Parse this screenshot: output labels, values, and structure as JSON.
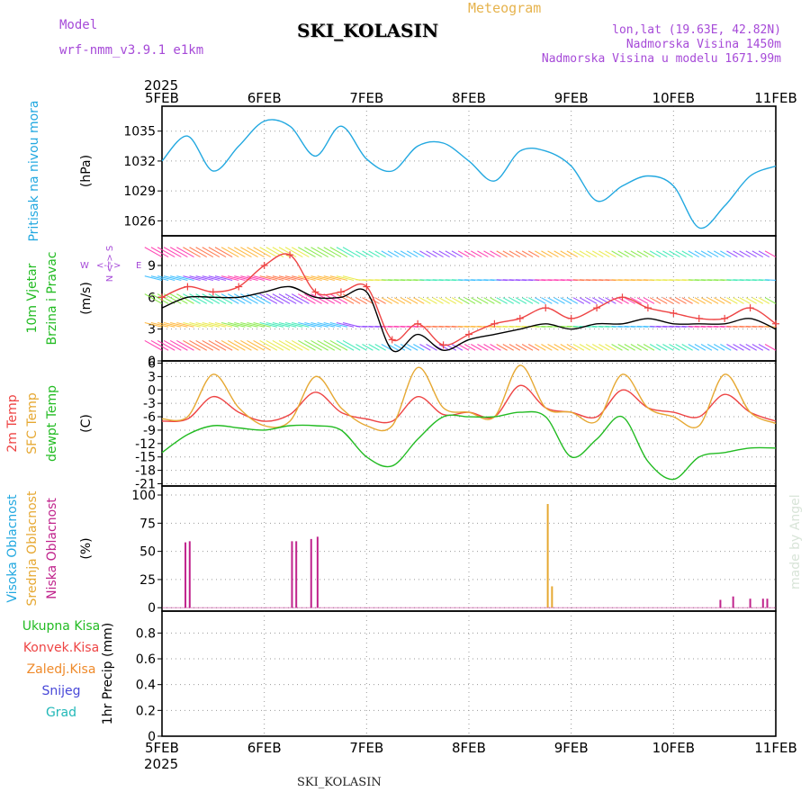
{
  "header": {
    "model_label": "Model",
    "model_name": "wrf-nmm_v3.9.1 e1km",
    "chart_kind": "Meteogram",
    "station": "SKI_KOLASIN",
    "coords": "lon,lat (19.63E, 42.82N)",
    "elevation": "Nadmorska Visina 1450m",
    "model_elevation": "Nadmorska Visina u modelu 1671.99m",
    "year_top": "2025",
    "year_bottom": "2025",
    "footer_station": "SKI_KOLASIN",
    "credit": "made by Angel"
  },
  "chart_data": {
    "type": "line",
    "x_ticks": [
      "5FEB",
      "6FEB",
      "7FEB",
      "8FEB",
      "9FEB",
      "10FEB",
      "11FEB"
    ],
    "hours": [
      0,
      6,
      12,
      18,
      24,
      30,
      36,
      42,
      48,
      54,
      60,
      66,
      72,
      78,
      84,
      90,
      96,
      102,
      108,
      114,
      120,
      126,
      132,
      138,
      144
    ],
    "panels": [
      {
        "id": "pressure",
        "labels": [
          {
            "text": "Pritisak na nivou mora",
            "color": "#22a8e0"
          }
        ],
        "unit": "(hPa)",
        "yticks": [
          1026,
          1029,
          1032,
          1035
        ],
        "ylim": [
          1024.5,
          1037.5
        ],
        "series": [
          {
            "color": "#22a8e0",
            "values": [
              1032,
              1034.5,
              1031,
              1033.5,
              1036,
              1035.5,
              1032.5,
              1035.5,
              1032.2,
              1031,
              1033.5,
              1033.8,
              1032,
              1030,
              1033,
              1033,
              1031.5,
              1028,
              1029.5,
              1030.5,
              1029.5,
              1025.3,
              1027.5,
              1030.5,
              1031.5
            ]
          }
        ]
      },
      {
        "id": "wind",
        "labels": [
          {
            "text": "10m Vjetar",
            "color": "#22bb22"
          },
          {
            "text": "Brzina i Pravac",
            "color": "#22bb22"
          }
        ],
        "unit": "(m/s)",
        "compass": "W <-|-> E",
        "compass_ns": "N <-> S",
        "yticks": [
          0,
          3,
          6,
          9
        ],
        "ylim": [
          0,
          11.8
        ],
        "series": [
          {
            "name": "Brzina",
            "color": "#000000",
            "values": [
              5,
              6,
              6,
              6,
              6.5,
              7,
              6,
              6,
              6.5,
              1,
              2.5,
              1,
              2,
              2.5,
              3,
              3.5,
              3,
              3.5,
              3.5,
              4,
              3.5,
              3.5,
              3.5,
              4,
              3
            ]
          },
          {
            "name": "Udari",
            "color": "#ee4444",
            "values": [
              6,
              7,
              6.5,
              7,
              9,
              10,
              6.5,
              6.5,
              7,
              2,
              3.5,
              1.5,
              2.5,
              3.5,
              4,
              5,
              4,
              5,
              6,
              5,
              4.5,
              4,
              4,
              5,
              3.5
            ]
          }
        ]
      },
      {
        "id": "temperature",
        "labels": [
          {
            "text": "2m Temp",
            "color": "#ee4444"
          },
          {
            "text": "SFC Temp",
            "color": "#e6a832"
          },
          {
            "text": "dewpt Temp",
            "color": "#22bb22"
          }
        ],
        "unit": "(C)",
        "yticks": [
          -21,
          -18,
          -15,
          -12,
          -9,
          -6,
          -3,
          0,
          3,
          6
        ],
        "ylim": [
          -21.5,
          6.5
        ],
        "series": [
          {
            "name": "2m Temp",
            "color": "#ee4444",
            "values": [
              -7,
              -6.5,
              -1.5,
              -5,
              -7,
              -5.5,
              -0.5,
              -5,
              -6.5,
              -7,
              -1.5,
              -5.5,
              -5,
              -6,
              1,
              -4,
              -5,
              -6,
              0,
              -4,
              -5,
              -6,
              -1,
              -5,
              -7
            ]
          },
          {
            "name": "SFC Temp",
            "color": "#e6a832",
            "values": [
              -6.5,
              -6,
              3.5,
              -4,
              -8,
              -7,
              3,
              -4,
              -8,
              -8,
              5,
              -4,
              -5,
              -6,
              5.5,
              -4,
              -5,
              -7,
              3.5,
              -4,
              -6,
              -8,
              3.5,
              -5,
              -7.5
            ]
          },
          {
            "name": "dewpt Temp",
            "color": "#22bb22",
            "values": [
              -14,
              -10,
              -8,
              -8.5,
              -9,
              -8,
              -8,
              -9,
              -15,
              -17,
              -11,
              -6,
              -6,
              -6,
              -5,
              -6,
              -15,
              -11,
              -6,
              -16,
              -20,
              -15,
              -14,
              -13,
              -13
            ]
          }
        ]
      },
      {
        "id": "clouds",
        "labels": [
          {
            "text": "Visoka Oblacnost",
            "color": "#22a8e0"
          },
          {
            "text": "Srednja Oblacnost",
            "color": "#e6a832"
          },
          {
            "text": "Niska Oblacnost",
            "color": "#c0238c"
          }
        ],
        "unit": "(%)",
        "yticks": [
          0,
          25,
          50,
          75,
          100
        ],
        "ylim": [
          -3,
          108
        ],
        "bars": [
          {
            "t": 5.5,
            "v": 58,
            "color": "#c0238c"
          },
          {
            "t": 6.5,
            "v": 59,
            "color": "#c0238c"
          },
          {
            "t": 30.5,
            "v": 59,
            "color": "#c0238c"
          },
          {
            "t": 31.5,
            "v": 59,
            "color": "#c0238c"
          },
          {
            "t": 35,
            "v": 61,
            "color": "#c0238c"
          },
          {
            "t": 36.5,
            "v": 63,
            "color": "#c0238c"
          },
          {
            "t": 90.5,
            "v": 92,
            "color": "#e6a832"
          },
          {
            "t": 91.5,
            "v": 19,
            "color": "#e6a832"
          },
          {
            "t": 131,
            "v": 7,
            "color": "#c0238c"
          },
          {
            "t": 134,
            "v": 10,
            "color": "#c0238c"
          },
          {
            "t": 138,
            "v": 8,
            "color": "#c0238c"
          },
          {
            "t": 141,
            "v": 8,
            "color": "#c0238c"
          },
          {
            "t": 142,
            "v": 8,
            "color": "#c0238c"
          }
        ]
      },
      {
        "id": "precip",
        "labels": [
          {
            "text": "Ukupna Kisa",
            "color": "#22bb22"
          },
          {
            "text": "Konvek.Kisa",
            "color": "#ee4444"
          },
          {
            "text": "Zaledj.Kisa",
            "color": "#ef8a2a"
          },
          {
            "text": "Snijeg",
            "color": "#4848d8"
          },
          {
            "text": "Grad",
            "color": "#22b8b8"
          }
        ],
        "unit": "1hr Precip (mm)",
        "yticks": [
          0,
          0.2,
          0.4,
          0.6,
          0.8
        ],
        "ylim": [
          0,
          0.97
        ],
        "series": []
      }
    ]
  }
}
